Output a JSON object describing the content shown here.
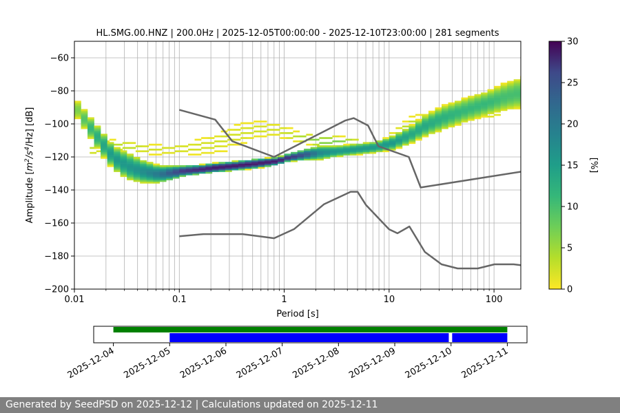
{
  "chart_data": [
    {
      "type": "heatmap",
      "title": "HL.SMG.00.HNZ | 200.0Hz | 2025-12-05T00:00:00 - 2025-12-10T23:00:00 | 281 segments",
      "xlabel": "Period [s]",
      "ylabel_pre": "Amplitude [",
      "ylabel_m": "m",
      "ylabel_sup1": "2",
      "ylabel_mid": "/s",
      "ylabel_sup2": "4",
      "ylabel_post": "/Hz] [dB]",
      "xscale": "log",
      "xlim": [
        0.01,
        180
      ],
      "ylim": [
        -200,
        -50
      ],
      "grid": true,
      "xticks": [
        {
          "value": 0.01,
          "label": "0.01"
        },
        {
          "value": 0.1,
          "label": "0.1"
        },
        {
          "value": 1,
          "label": "1"
        },
        {
          "value": 10,
          "label": "10"
        },
        {
          "value": 100,
          "label": "100"
        }
      ],
      "yticks": [
        {
          "value": -60,
          "label": "−60"
        },
        {
          "value": -80,
          "label": "−80"
        },
        {
          "value": -100,
          "label": "−100"
        },
        {
          "value": -120,
          "label": "−120"
        },
        {
          "value": -140,
          "label": "−140"
        },
        {
          "value": -160,
          "label": "−160"
        },
        {
          "value": -180,
          "label": "−180"
        },
        {
          "value": -200,
          "label": "−200"
        }
      ],
      "colorbar": {
        "label": "[%]",
        "range": [
          0,
          30
        ],
        "colormap": "viridis_r",
        "ticks": [
          {
            "value": 0,
            "label": "0"
          },
          {
            "value": 5,
            "label": "5"
          },
          {
            "value": 10,
            "label": "10"
          },
          {
            "value": 15,
            "label": "15"
          },
          {
            "value": 20,
            "label": "20"
          },
          {
            "value": 25,
            "label": "25"
          },
          {
            "value": 30,
            "label": "30"
          }
        ]
      },
      "noise_models": {
        "color": "#666666",
        "high": {
          "periods": [
            0.1,
            0.22,
            0.32,
            0.8,
            3.8,
            4.6,
            6.3,
            7.9,
            15.4,
            20,
            354.8
          ],
          "db": [
            -91.5,
            -97.4,
            -110.5,
            -120.0,
            -98.0,
            -96.5,
            -101.0,
            -113.5,
            -120.0,
            -138.5,
            -126.0
          ]
        },
        "low": {
          "periods": [
            0.1,
            0.17,
            0.4,
            0.8,
            1.24,
            2.4,
            4.3,
            5.0,
            6.0,
            10.0,
            12.0,
            15.6,
            21.9,
            31.6,
            45,
            70,
            101,
            154,
            328
          ],
          "db": [
            -168.0,
            -166.7,
            -166.7,
            -169.2,
            -163.7,
            -148.6,
            -141.1,
            -141.1,
            -149.0,
            -163.8,
            -166.2,
            -162.1,
            -177.5,
            -185.0,
            -187.5,
            -187.5,
            -185.0,
            -185.0,
            -187.5
          ]
        }
      },
      "psd_density": {
        "period_bins_per_decade": 8,
        "db_bin": 1,
        "main_band": {
          "periods": [
            0.01,
            0.013,
            0.017,
            0.022,
            0.03,
            0.04,
            0.06,
            0.08,
            0.1,
            0.15,
            0.2,
            0.3,
            0.5,
            0.8,
            1.0,
            1.5,
            2.0,
            3.0,
            5.0,
            7.0,
            10.0,
            15.0,
            20.0,
            30.0,
            50.0,
            80.0,
            120.0,
            180.0
          ],
          "center_db": [
            -92,
            -102,
            -112,
            -121,
            -126,
            -129,
            -131,
            -130,
            -129,
            -128,
            -127,
            -126,
            -124.5,
            -123,
            -121,
            -119,
            -118,
            -117,
            -115.5,
            -114.5,
            -112,
            -107,
            -102,
            -97,
            -92,
            -88,
            -84,
            -81
          ],
          "halfwidth_db": [
            5,
            6,
            7,
            7,
            8,
            7,
            5,
            4,
            3,
            2.5,
            2.5,
            2.5,
            2.5,
            2,
            2,
            3,
            4,
            3,
            3,
            3,
            4,
            5,
            6,
            7,
            7,
            7,
            8,
            9
          ],
          "peak_percent": [
            6,
            10,
            12,
            14,
            14,
            15,
            18,
            22,
            25,
            27,
            28,
            28,
            28,
            28,
            26,
            22,
            16,
            14,
            14,
            14,
            14,
            12,
            12,
            11,
            10,
            10,
            9,
            9
          ]
        },
        "scattered_band": {
          "periods": [
            0.014,
            0.02,
            0.03,
            0.05,
            0.08,
            0.12,
            0.2,
            0.3,
            0.5,
            0.8,
            1.2,
            2.0,
            3.0,
            5.0
          ],
          "center_db": [
            -116,
            -113,
            -114,
            -116,
            -116,
            -115,
            -113,
            -108,
            -104,
            -104,
            -108,
            -111,
            -111,
            -113
          ],
          "halfwidth_db": [
            3,
            3,
            3,
            3,
            3,
            4,
            6,
            7,
            5,
            4,
            3,
            3,
            3,
            3
          ],
          "peak_percent": [
            3,
            3,
            3,
            2,
            2,
            2,
            2,
            2,
            2,
            2,
            3,
            6,
            6,
            4
          ]
        },
        "upper_lobe": {
          "periods": [
            10,
            13,
            16,
            20,
            30,
            50,
            80,
            120,
            180
          ],
          "center_db": [
            -108,
            -103,
            -98.5,
            -97.5,
            -98,
            -97,
            -94,
            -91,
            -88
          ],
          "halfwidth_db": [
            2,
            3,
            3,
            3,
            3,
            3,
            3,
            3,
            4
          ],
          "peak_percent": [
            3,
            3,
            3,
            3,
            3,
            4,
            3,
            3,
            3
          ]
        }
      }
    },
    {
      "type": "timeline",
      "xaxis_dates": [
        "2025-12-04",
        "2025-12-05",
        "2025-12-06",
        "2025-12-07",
        "2025-12-08",
        "2025-12-09",
        "2025-12-10",
        "2025-12-11"
      ],
      "xlim_days": [
        -0.35,
        7.35
      ],
      "data_availability": {
        "color": "#008000",
        "start_day": 0.0,
        "end_day": 7.0
      },
      "psd_segments": {
        "color": "#0000ff",
        "intervals": [
          [
            1.0,
            5.96
          ],
          [
            6.02,
            7.0
          ]
        ]
      }
    }
  ],
  "footer": {
    "text": "Generated by SeedPSD on 2025-12-12 | Calculations updated on 2025-12-11"
  }
}
